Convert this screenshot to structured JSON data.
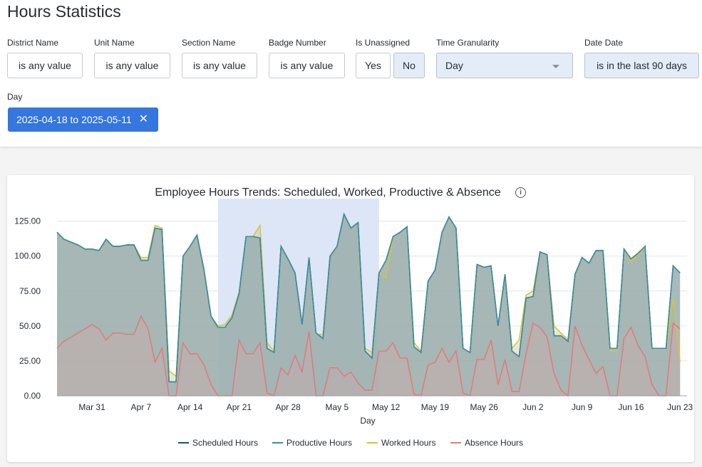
{
  "page": {
    "title": "Hours Statistics"
  },
  "filters": {
    "district": {
      "label": "District Name",
      "value": "is any value"
    },
    "unit": {
      "label": "Unit Name",
      "value": "is any value"
    },
    "section": {
      "label": "Section Name",
      "value": "is any value"
    },
    "badge": {
      "label": "Badge Number",
      "value": "is any value"
    },
    "unassigned": {
      "label": "Is Unassigned",
      "yes": "Yes",
      "no": "No",
      "selected": "No"
    },
    "granularity": {
      "label": "Time Granularity",
      "value": "Day"
    },
    "date": {
      "label": "Date Date",
      "value": "is in the last 90 days"
    },
    "day": {
      "label": "Day",
      "value": "2025-04-18 to 2025-05-11"
    }
  },
  "colors": {
    "scheduled": "#1f4e79",
    "productive": "#3d8f9e",
    "worked": "#d4c43a",
    "absence": "#e07a7a",
    "area_fill": "#9aaeb0",
    "selection": "#dce6f7",
    "chip": "#3576e0"
  },
  "chart_data": {
    "type": "area",
    "title": "Employee Hours Trends: Scheduled, Worked, Productive & Absence",
    "xlabel": "Day",
    "ylabel": "",
    "ylim": [
      0,
      135
    ],
    "y_ticks": [
      "0.00",
      "25.00",
      "50.00",
      "75.00",
      "100.00",
      "125.00"
    ],
    "x_ticks": [
      "Mar 31",
      "Apr 7",
      "Apr 14",
      "Apr 21",
      "Apr 28",
      "May 5",
      "May 12",
      "May 19",
      "May 26",
      "Jun 2",
      "Jun 9",
      "Jun 16",
      "Jun 23"
    ],
    "x_tick_dates": [
      "2025-03-31",
      "2025-04-07",
      "2025-04-14",
      "2025-04-21",
      "2025-04-28",
      "2025-05-05",
      "2025-05-12",
      "2025-05-19",
      "2025-05-26",
      "2025-06-02",
      "2025-06-09",
      "2025-06-16",
      "2025-06-23"
    ],
    "x_start": "2025-03-26",
    "x_end": "2025-06-24",
    "selection": [
      "2025-04-18",
      "2025-05-11"
    ],
    "grid": true,
    "legend_position": "bottom",
    "series": [
      {
        "name": "Scheduled Hours",
        "values": [
          117,
          112,
          110,
          108,
          105,
          105,
          104,
          112,
          107,
          107,
          108,
          108,
          97,
          97,
          120,
          119,
          10,
          10,
          100,
          107,
          115,
          90,
          57,
          49,
          49,
          56,
          73,
          114,
          114,
          113,
          34,
          31,
          107,
          98,
          88,
          51,
          99,
          45,
          41,
          100,
          107,
          130,
          120,
          124,
          32,
          27,
          88,
          97,
          114,
          117,
          121,
          35,
          31,
          82,
          90,
          117,
          128,
          120,
          34,
          31,
          94,
          92,
          93,
          50,
          87,
          32,
          28,
          70,
          71,
          103,
          101,
          43,
          43,
          39,
          87,
          99,
          95,
          104,
          104,
          34,
          34,
          105,
          98,
          102,
          107,
          34,
          34,
          34,
          93,
          88
        ]
      },
      {
        "name": "Productive Hours",
        "values": [
          117,
          112,
          110,
          108,
          105,
          105,
          104,
          112,
          107,
          107,
          108,
          108,
          97,
          97,
          120,
          119,
          10,
          10,
          100,
          107,
          115,
          90,
          57,
          49,
          49,
          56,
          73,
          114,
          114,
          113,
          34,
          31,
          107,
          98,
          88,
          51,
          99,
          45,
          41,
          100,
          107,
          130,
          120,
          124,
          32,
          27,
          88,
          97,
          114,
          117,
          121,
          35,
          31,
          82,
          90,
          117,
          128,
          120,
          34,
          31,
          94,
          92,
          93,
          50,
          87,
          32,
          28,
          70,
          71,
          103,
          101,
          43,
          43,
          39,
          87,
          99,
          95,
          104,
          104,
          34,
          34,
          105,
          98,
          102,
          107,
          34,
          34,
          34,
          93,
          88
        ]
      },
      {
        "name": "Worked Hours",
        "values": [
          117,
          112,
          110,
          108,
          105,
          105,
          104,
          112,
          107,
          107,
          108,
          108,
          99,
          99,
          122,
          120,
          18,
          14,
          100,
          107,
          115,
          90,
          57,
          50,
          51,
          58,
          74,
          114,
          114,
          122,
          38,
          32,
          107,
          98,
          88,
          51,
          99,
          44,
          44,
          100,
          107,
          130,
          120,
          124,
          34,
          31,
          88,
          84,
          114,
          117,
          121,
          38,
          32,
          82,
          90,
          117,
          128,
          120,
          34,
          31,
          94,
          92,
          93,
          50,
          87,
          34,
          40,
          72,
          75,
          103,
          101,
          50,
          45,
          40,
          87,
          99,
          95,
          104,
          104,
          32,
          32,
          105,
          96,
          100,
          107,
          34,
          34,
          34,
          70,
          24
        ]
      },
      {
        "name": "Absence Hours",
        "values": [
          34,
          39,
          42,
          45,
          48,
          51,
          48,
          40,
          45,
          45,
          44,
          44,
          57,
          48,
          24,
          34,
          0,
          0,
          38,
          30,
          30,
          22,
          8,
          0,
          0,
          0,
          40,
          30,
          30,
          38,
          2,
          0,
          20,
          15,
          29,
          17,
          46,
          0,
          0,
          20,
          20,
          14,
          17,
          9,
          4,
          4,
          32,
          32,
          38,
          27,
          27,
          1,
          0,
          22,
          24,
          34,
          24,
          32,
          2,
          0,
          26,
          26,
          40,
          8,
          26,
          3,
          3,
          30,
          52,
          49,
          42,
          16,
          4,
          0,
          50,
          36,
          26,
          16,
          21,
          0,
          0,
          41,
          49,
          36,
          28,
          8,
          0,
          0,
          52,
          48
        ]
      }
    ]
  }
}
